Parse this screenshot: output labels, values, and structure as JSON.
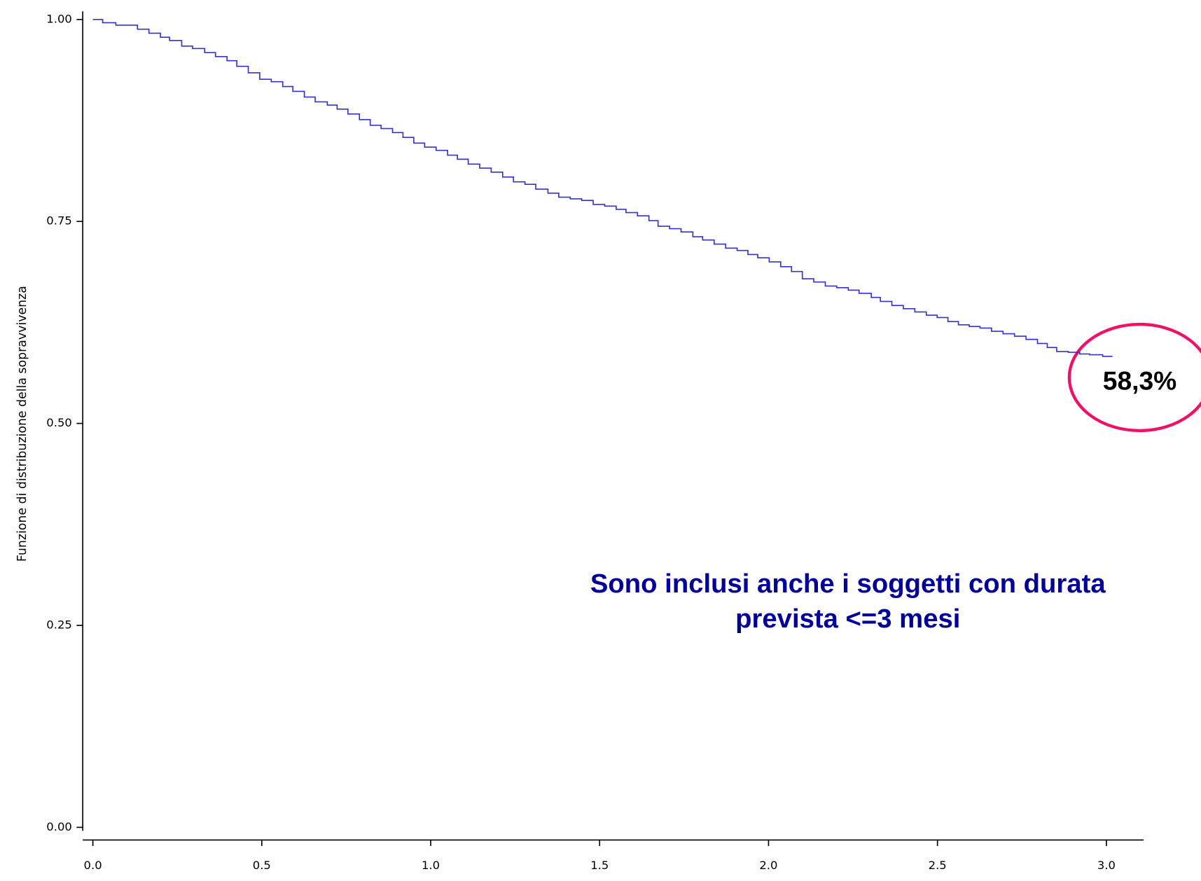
{
  "chart_data": {
    "type": "line",
    "step": "post",
    "ylabel": "Funzione di distribuzione della sopravvivenza",
    "annotations": [
      "58,3%",
      "Sono inclusi anche i soggetti con durata",
      "prevista <=3 mesi"
    ],
    "xlim": [
      -0.03,
      3.11
    ],
    "ylim": [
      -0.01,
      1.01
    ],
    "xticks": [
      {
        "value": 0,
        "label": "0.0"
      },
      {
        "value": 0.5,
        "label": "0.5"
      },
      {
        "value": 1,
        "label": "1.0"
      },
      {
        "value": 1.5,
        "label": "1.5"
      },
      {
        "value": 2,
        "label": "2.0"
      },
      {
        "value": 2.5,
        "label": "2.5"
      },
      {
        "value": 3,
        "label": "3.0"
      }
    ],
    "yticks": [
      {
        "value": 0,
        "label": "0.00"
      },
      {
        "value": 0.25,
        "label": "0.25"
      },
      {
        "value": 0.5,
        "label": "0.50"
      },
      {
        "value": 0.75,
        "label": "0.75"
      },
      {
        "value": 1,
        "label": "1.00"
      }
    ],
    "series": [
      {
        "color": "#3333cc",
        "x": [
          0,
          0.029,
          0.068,
          0.132,
          0.166,
          0.2,
          0.227,
          0.263,
          0.295,
          0.331,
          0.363,
          0.397,
          0.426,
          0.46,
          0.494,
          0.528,
          0.562,
          0.592,
          0.626,
          0.658,
          0.694,
          0.723,
          0.755,
          0.789,
          0.821,
          0.853,
          0.887,
          0.918,
          0.95,
          0.982,
          1.016,
          1.05,
          1.079,
          1.111,
          1.145,
          1.179,
          1.213,
          1.245,
          1.279,
          1.311,
          1.347,
          1.379,
          1.413,
          1.447,
          1.481,
          1.515,
          1.549,
          1.578,
          1.612,
          1.646,
          1.673,
          1.707,
          1.741,
          1.776,
          1.805,
          1.839,
          1.873,
          1.907,
          1.939,
          1.968,
          2.002,
          2.036,
          2.068,
          2.1,
          2.134,
          2.168,
          2.202,
          2.236,
          2.268,
          2.304,
          2.331,
          2.365,
          2.399,
          2.433,
          2.467,
          2.499,
          2.531,
          2.562,
          2.594,
          2.626,
          2.66,
          2.694,
          2.728,
          2.762,
          2.796,
          2.825,
          2.853,
          2.887,
          2.921,
          2.95,
          2.989,
          3.018
        ],
        "values": [
          1.0,
          0.996,
          0.993,
          0.988,
          0.983,
          0.978,
          0.974,
          0.967,
          0.964,
          0.959,
          0.954,
          0.949,
          0.942,
          0.934,
          0.926,
          0.923,
          0.917,
          0.911,
          0.904,
          0.898,
          0.894,
          0.889,
          0.883,
          0.876,
          0.869,
          0.865,
          0.86,
          0.854,
          0.847,
          0.842,
          0.838,
          0.832,
          0.827,
          0.821,
          0.816,
          0.811,
          0.805,
          0.799,
          0.796,
          0.79,
          0.785,
          0.78,
          0.778,
          0.776,
          0.771,
          0.769,
          0.765,
          0.761,
          0.757,
          0.751,
          0.744,
          0.741,
          0.737,
          0.731,
          0.727,
          0.722,
          0.717,
          0.714,
          0.709,
          0.705,
          0.7,
          0.694,
          0.688,
          0.679,
          0.675,
          0.67,
          0.668,
          0.665,
          0.661,
          0.656,
          0.651,
          0.646,
          0.642,
          0.638,
          0.634,
          0.631,
          0.626,
          0.622,
          0.62,
          0.618,
          0.614,
          0.611,
          0.608,
          0.604,
          0.599,
          0.594,
          0.589,
          0.588,
          0.586,
          0.585,
          0.583,
          0.583
        ]
      }
    ]
  }
}
